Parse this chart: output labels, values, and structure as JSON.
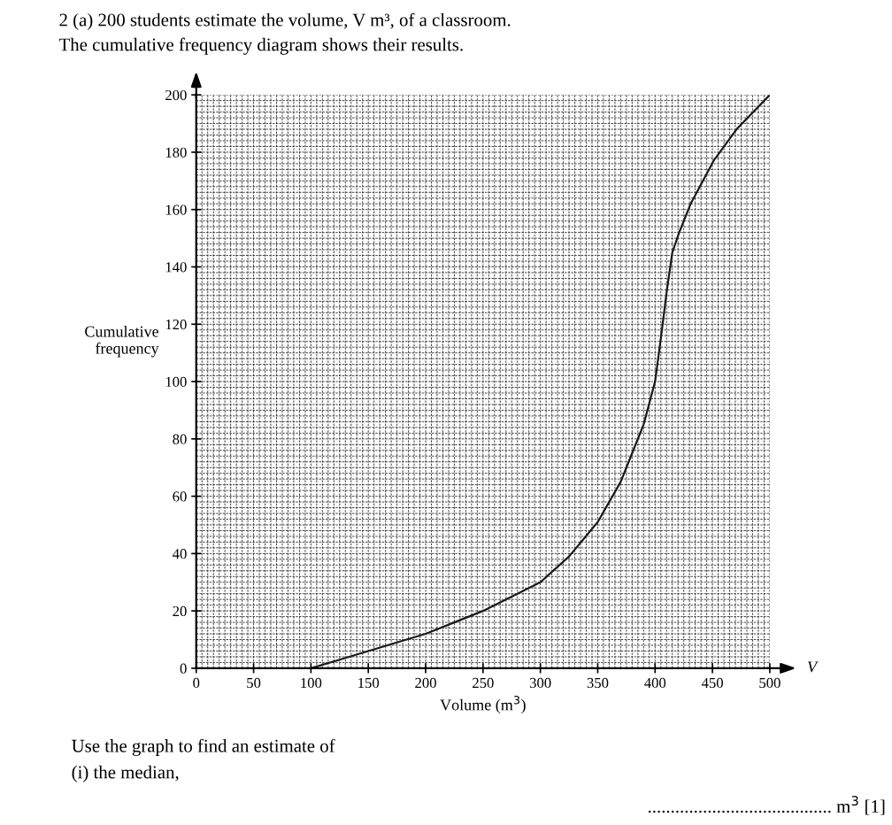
{
  "chart_data": {
    "type": "line",
    "title": "2 (a) 200 students estimate the volume, V m³, of a classroom.",
    "subtitle": "The cumulative frequency diagram shows their results.",
    "xlabel": "Volume (m$^{3}$)",
    "ylabel": "Cumulative\nfrequency",
    "series": [
      {
        "color": "#1a1a1a",
        "x": [
          100,
          125,
          150,
          175,
          200,
          225,
          250,
          275,
          300,
          325,
          350,
          370,
          381,
          390,
          400,
          405,
          410,
          415,
          421,
          431,
          451,
          471,
          500
        ],
        "values": [
          0,
          3,
          6,
          9,
          12,
          16,
          20,
          25,
          30,
          39,
          51,
          65,
          76,
          85,
          100,
          115,
          131,
          145,
          152,
          162,
          177,
          188,
          200
        ]
      }
    ],
    "xlim": [
      0,
      500
    ],
    "xticks": [
      0,
      50,
      100,
      150,
      200,
      250,
      300,
      350,
      400,
      450,
      500
    ],
    "ylim": [
      0,
      200
    ],
    "yticks": [
      0,
      20,
      40,
      60,
      80,
      100,
      120,
      140,
      160,
      180,
      200
    ],
    "grid": true,
    "marker": "none",
    "line_style": "solid",
    "annotations": [
      "V",
      "Use the graph to find an estimate of",
      "(i) the median,",
      "........................................ m$^{3}$ [1]"
    ]
  }
}
